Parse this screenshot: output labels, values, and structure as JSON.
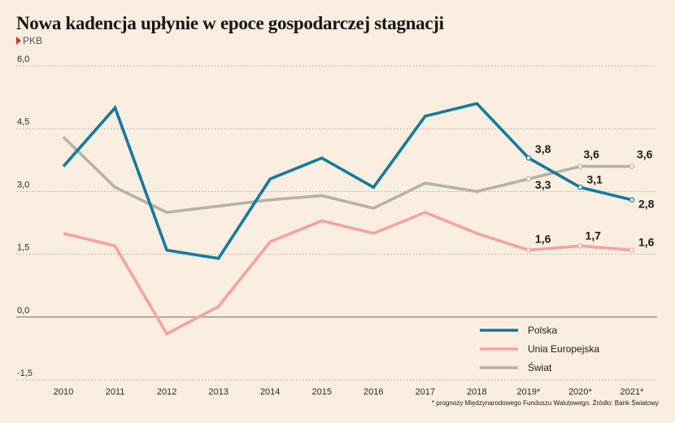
{
  "header": {
    "title": "Nowa kadencja upłynie w epoce gospodarczej stagnacji",
    "subtitle": "PKB"
  },
  "footnote": "* prognozy Międzynarodowego Funduszu Walutowego. Źródło: Bank Światowy",
  "chart_data": {
    "type": "line",
    "title": "Nowa kadencja upłynie w epoce gospodarczej stagnacji",
    "subtitle": "PKB",
    "x": [
      "2010",
      "2011",
      "2012",
      "2013",
      "2014",
      "2015",
      "2016",
      "2017",
      "2018",
      "2019*",
      "2020*",
      "2021*"
    ],
    "ylim": [
      -1.5,
      6.0
    ],
    "yticks": [
      "6,0",
      "4,5",
      "3,0",
      "1,5",
      "0,0",
      "-1,5"
    ],
    "ytick_values": [
      6.0,
      4.5,
      3.0,
      1.5,
      0.0,
      -1.5
    ],
    "grid": "horizontal dotted",
    "legend_position": "bottom-right",
    "series": [
      {
        "name": "Polska",
        "color": "#1479a0",
        "values": [
          3.6,
          5.0,
          1.6,
          1.4,
          3.3,
          3.8,
          3.1,
          4.8,
          5.1,
          3.8,
          3.1,
          2.8
        ],
        "labels": [
          null,
          null,
          null,
          null,
          null,
          null,
          null,
          null,
          null,
          "3,8",
          "3,1",
          "2,8"
        ]
      },
      {
        "name": "Unia Europejska",
        "color": "#f4a3a0",
        "values": [
          2.0,
          1.7,
          -0.4,
          0.25,
          1.8,
          2.3,
          2.0,
          2.5,
          2.0,
          1.6,
          1.7,
          1.6
        ],
        "labels": [
          null,
          null,
          null,
          null,
          null,
          null,
          null,
          null,
          null,
          "1,6",
          "1,7",
          "1,6"
        ]
      },
      {
        "name": "Świat",
        "color": "#b5b2aa",
        "values": [
          4.3,
          3.1,
          2.5,
          2.65,
          2.8,
          2.9,
          2.6,
          3.2,
          3.0,
          3.3,
          3.6,
          3.6
        ],
        "labels": [
          null,
          null,
          null,
          null,
          null,
          null,
          null,
          null,
          null,
          "3,3",
          "3,6",
          "3,6"
        ]
      }
    ]
  }
}
